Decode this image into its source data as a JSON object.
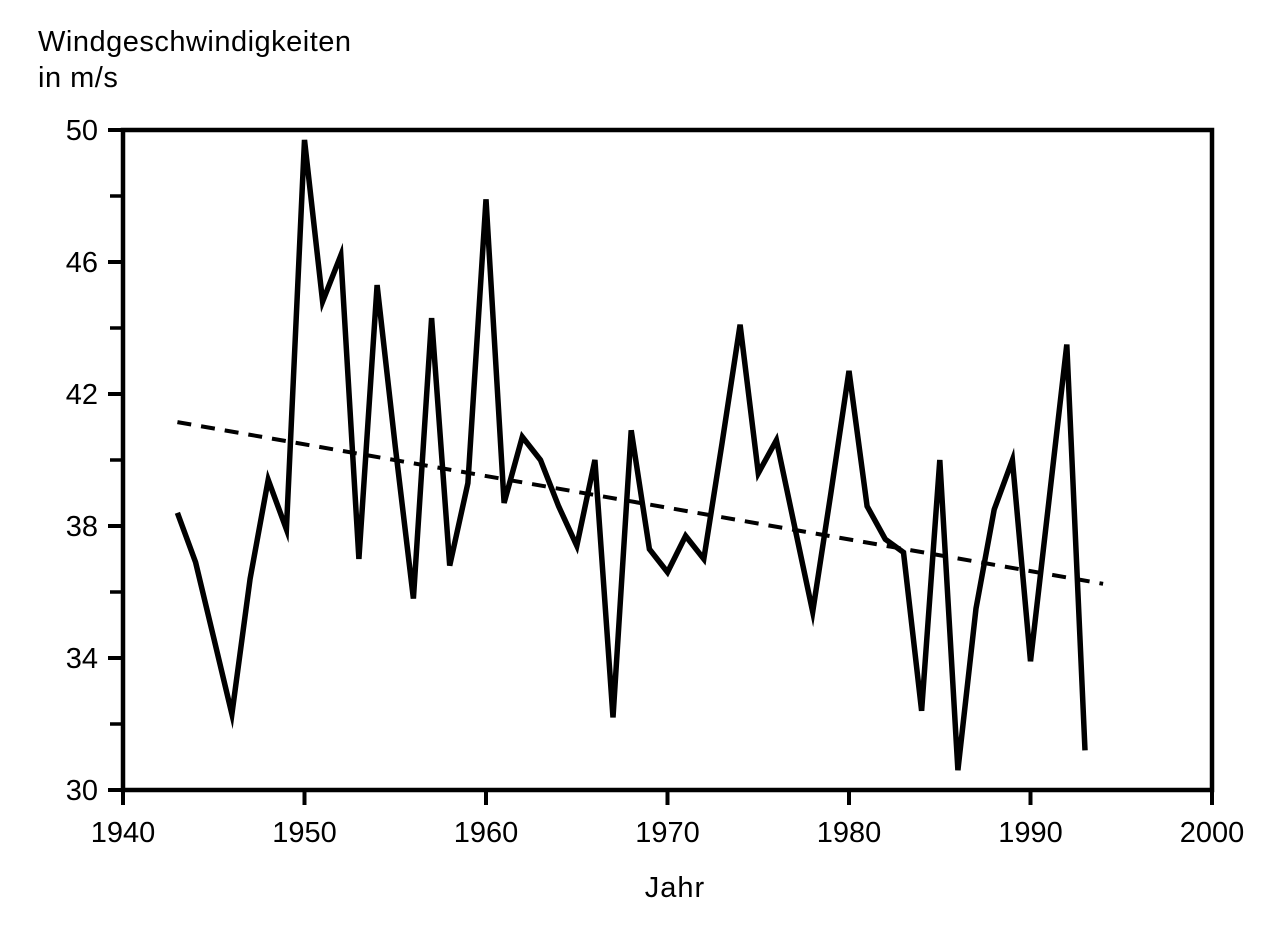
{
  "title_line1": "Windgeschwindigkeiten",
  "title_line2": "in m/s",
  "x_axis_title": "Jahr",
  "colors": {
    "line": "#000000",
    "trend": "#000000",
    "axis": "#000000",
    "background": "#ffffff"
  },
  "chart_data": {
    "type": "line",
    "title": "Windgeschwindigkeiten in m/s",
    "xlabel": "Jahr",
    "ylabel": "Windgeschwindigkeiten in m/s",
    "xlim": [
      1940,
      2000
    ],
    "ylim": [
      30,
      50
    ],
    "x_major_ticks": [
      1940,
      1950,
      1960,
      1970,
      1980,
      1990,
      2000
    ],
    "x_tick_labels": [
      "1940",
      "1950",
      "1960",
      "1970",
      "1980",
      "1990",
      "2000"
    ],
    "y_major_ticks": [
      30,
      34,
      38,
      42,
      46,
      50
    ],
    "y_tick_labels": [
      "30",
      "34",
      "38",
      "42",
      "46",
      "50"
    ],
    "y_minor_ticks": [
      32,
      36,
      40,
      44,
      48
    ],
    "grid": false,
    "legend": "none",
    "series": [
      {
        "name": "wind-speed",
        "style": "solid",
        "x": [
          1943,
          1944,
          1945,
          1946,
          1947,
          1948,
          1949,
          1950,
          1951,
          1952,
          1953,
          1954,
          1955,
          1956,
          1957,
          1958,
          1959,
          1960,
          1961,
          1962,
          1963,
          1964,
          1965,
          1966,
          1967,
          1968,
          1969,
          1970,
          1971,
          1972,
          1973,
          1974,
          1975,
          1976,
          1977,
          1978,
          1979,
          1980,
          1981,
          1982,
          1983,
          1984,
          1985,
          1986,
          1987,
          1988,
          1989,
          1990,
          1991,
          1992,
          1993
        ],
        "values": [
          38.4,
          36.9,
          34.6,
          32.3,
          36.4,
          39.4,
          37.9,
          49.7,
          44.8,
          46.2,
          37.0,
          45.3,
          40.4,
          35.8,
          44.3,
          36.8,
          39.3,
          47.9,
          38.7,
          40.7,
          40.0,
          38.6,
          37.4,
          40.0,
          32.2,
          40.9,
          37.3,
          36.6,
          37.7,
          37.0,
          40.5,
          44.1,
          39.6,
          40.6,
          38.0,
          35.4,
          39.0,
          42.7,
          38.6,
          37.6,
          37.2,
          32.4,
          40.0,
          30.6,
          35.5,
          38.5,
          40.0,
          33.9,
          38.7,
          43.5,
          31.2
        ]
      },
      {
        "name": "trend",
        "style": "dashed",
        "x": [
          1943,
          1994
        ],
        "values": [
          41.15,
          36.25
        ]
      }
    ]
  }
}
